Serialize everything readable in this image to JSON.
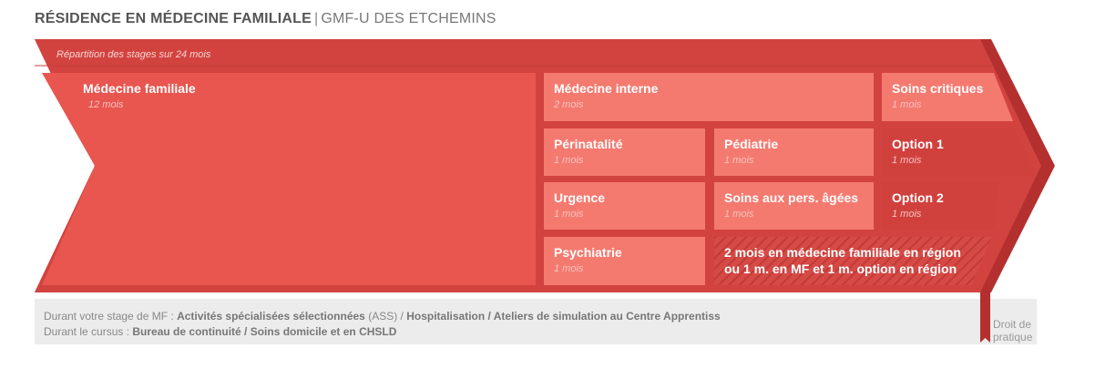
{
  "title": {
    "main": "RÉSIDENCE EN MÉDECINE FAMILIALE",
    "separator": "|",
    "sub": "GMF-U DES ETCHEMINS"
  },
  "banner": {
    "label": "Répartition des stages sur 24 mois"
  },
  "rotations": {
    "medecine_familiale": {
      "name": "Médecine familiale",
      "duration": "12 mois"
    },
    "medecine_interne": {
      "name": "Médecine interne",
      "duration": "2 mois"
    },
    "soins_critiques": {
      "name": "Soins critiques",
      "duration": "1 mois"
    },
    "perinatalite": {
      "name": "Périnatalité",
      "duration": "1 mois"
    },
    "pediatrie": {
      "name": "Pédiatrie",
      "duration": "1 mois"
    },
    "option1": {
      "name": "Option 1",
      "duration": "1 mois"
    },
    "urgence": {
      "name": "Urgence",
      "duration": "1 mois"
    },
    "soins_ages": {
      "name": "Soins aux pers. âgées",
      "duration": "1 mois"
    },
    "option2": {
      "name": "Option 2",
      "duration": "1 mois"
    },
    "psychiatrie": {
      "name": "Psychiatrie",
      "duration": "1 mois"
    },
    "region": {
      "line1": "2 mois en médecine familiale en région",
      "line2": "ou 1 m. en MF et 1 m. option en région"
    }
  },
  "footer": {
    "line1_prefix": "Durant votre stage de MF : ",
    "line1_a": "Activités spécialisées sélectionnées",
    "line1_b": " (ASS) / ",
    "line1_c": "Hospitalisation / Ateliers de simulation au Centre Apprentiss",
    "line2_prefix": "Durant le cursus : ",
    "line2_bold": "Bureau de continuité / Soins domicile et en CHSLD"
  },
  "end_marker": {
    "line1": "Droit de",
    "line2": "pratique"
  },
  "colors": {
    "arrow_dark": "#b3302f",
    "arrow_main": "#d2433f",
    "block_main": "#e8564f",
    "cell_light": "#f47a70",
    "cell_dark": "#d0413e",
    "footer_bar": "#ececec"
  }
}
